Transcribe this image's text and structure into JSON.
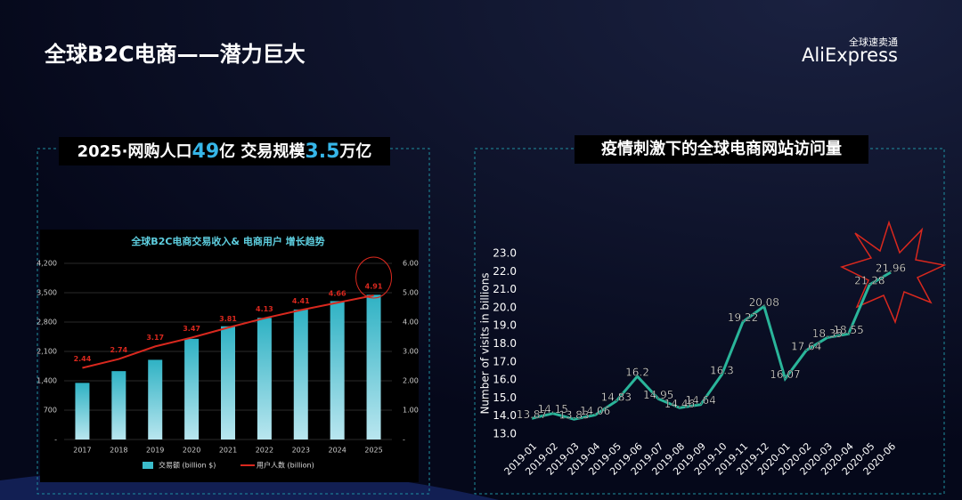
{
  "title": "全球B2C电商——潜力巨大",
  "brand": {
    "name": "AliExpress",
    "subtitle": "全球速卖通"
  },
  "chart_data": [
    {
      "type": "bar",
      "header_parts": [
        "2025·网购人口",
        "49",
        "亿 交易规模",
        "3.5",
        "万亿"
      ],
      "title": "全球B2C电商交易收入& 电商用户 增长趋势",
      "categories": [
        "2017",
        "2018",
        "2019",
        "2020",
        "2021",
        "2022",
        "2023",
        "2024",
        "2025"
      ],
      "series": [
        {
          "name": "交易额 (billion $)",
          "color": "#3bbccb",
          "values": [
            1350,
            1630,
            1900,
            2400,
            2700,
            2900,
            3100,
            3300,
            3450
          ]
        },
        {
          "name": "用户人数 (billion)",
          "color": "#d9281e",
          "type": "line",
          "axis": "y2",
          "values": [
            2.44,
            2.74,
            3.17,
            3.47,
            3.81,
            4.13,
            4.41,
            4.66,
            4.91
          ]
        }
      ],
      "ylim": [
        0,
        4200
      ],
      "yticks": [
        {
          "value": 0,
          "label": "-"
        },
        700,
        {
          "value": 1400,
          "label": "1,400"
        },
        {
          "value": 2100,
          "label": "2,100"
        },
        {
          "value": 2800,
          "label": "2,800"
        },
        {
          "value": 3500,
          "label": "3,500"
        },
        {
          "value": 4200,
          "label": "4,200"
        }
      ],
      "y2lim": [
        0,
        6
      ],
      "y2ticks": [
        {
          "value": 0,
          "label": "-"
        },
        {
          "value": 1,
          "label": "1.00"
        },
        {
          "value": 2,
          "label": "2.00"
        },
        {
          "value": 3,
          "label": "3.00"
        },
        {
          "value": 4,
          "label": "4.00"
        },
        {
          "value": 5,
          "label": "5.00"
        },
        {
          "value": 6,
          "label": "6.00"
        }
      ],
      "grid": true
    },
    {
      "type": "line",
      "title": "疫情刺激下的全球电商网站访问量",
      "y_label": "Number of visits in billions",
      "categories": [
        "2019-01",
        "2019-02",
        "2019-03",
        "2019-04",
        "2019-05",
        "2019-06",
        "2019-07",
        "2019-08",
        "2019-09",
        "2019-10",
        "2019-11",
        "2019-12",
        "2020-01",
        "2020-02",
        "2020-03",
        "2020-04",
        "2020-05",
        "2020-06"
      ],
      "values": [
        13.87,
        14.15,
        13.83,
        14.06,
        14.83,
        16.2,
        14.95,
        14.46,
        14.64,
        16.3,
        19.22,
        20.08,
        16.07,
        17.64,
        18.35,
        18.55,
        21.28,
        21.96
      ],
      "color": "#2ab59a",
      "ylim": [
        13,
        23
      ],
      "yticks": [
        {
          "value": 13,
          "label": "13.0"
        },
        {
          "value": 14,
          "label": "14.0"
        },
        {
          "value": 15,
          "label": "15.0"
        },
        {
          "value": 16,
          "label": "16.0"
        },
        {
          "value": 17,
          "label": "17.0"
        },
        {
          "value": 18,
          "label": "18.0"
        },
        {
          "value": 19,
          "label": "19.0"
        },
        {
          "value": 20,
          "label": "20.0"
        },
        {
          "value": 21,
          "label": "21.0"
        },
        {
          "value": 22,
          "label": "22.0"
        },
        {
          "value": 23,
          "label": "23.0"
        }
      ],
      "grid": false
    }
  ]
}
